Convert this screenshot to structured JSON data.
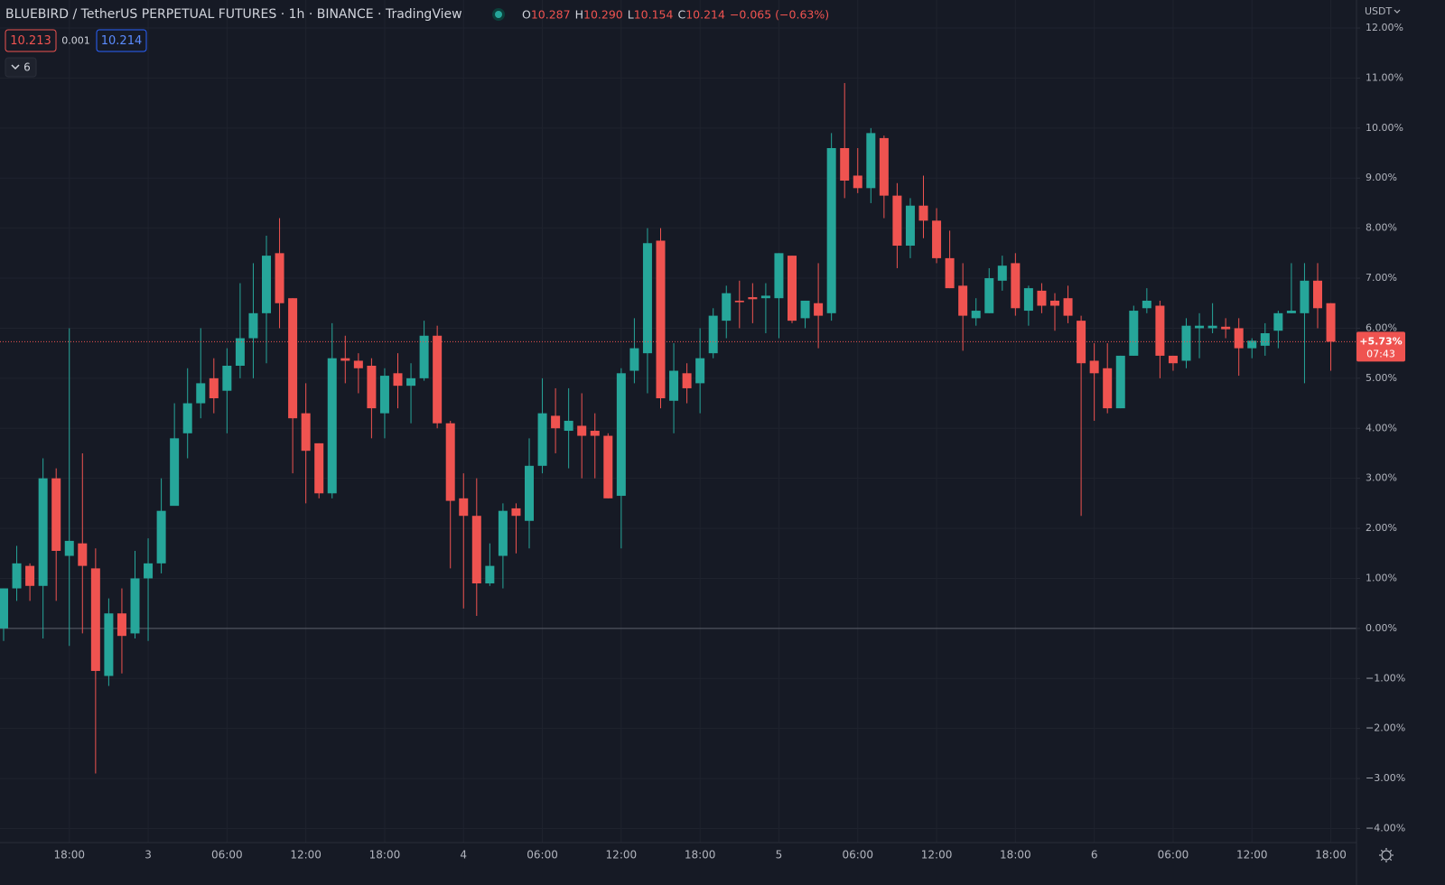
{
  "chart_data": {
    "type": "candlestick",
    "title": "BLUEBIRD / TetherUS PERPETUAL FUTURES · 1h · BINANCE · TradingView",
    "ohlc_legend": {
      "open_label": "O",
      "open": "10.287",
      "high_label": "H",
      "high": "10.290",
      "low_label": "L",
      "low": "10.154",
      "close_label": "C",
      "close": "10.214",
      "change": "−0.065 (−0.63%)"
    },
    "sell_price": "10.213",
    "spread": "0.001",
    "buy_price": "10.214",
    "indicator_count": "6",
    "currency": "USDT",
    "last": {
      "value": 5.73,
      "label": "+5.73%",
      "countdown": "07:43"
    },
    "baseline": 0,
    "up_color": "#26a69a",
    "down_color": "#ef5350",
    "grid": true,
    "categories": [
      null,
      null,
      null,
      null,
      null,
      "18:00",
      null,
      null,
      null,
      null,
      null,
      "3",
      null,
      null,
      null,
      null,
      null,
      "06:00",
      null,
      null,
      null,
      null,
      null,
      "12:00",
      null,
      null,
      null,
      null,
      null,
      "18:00",
      null,
      null,
      null,
      null,
      null,
      "4",
      null,
      null,
      null,
      null,
      null,
      "06:00",
      null,
      null,
      null,
      null,
      null,
      "12:00",
      null,
      null,
      null,
      null,
      null,
      "18:00",
      null,
      null,
      null,
      null,
      null,
      "5",
      null,
      null,
      null,
      null,
      null,
      "06:00",
      null,
      null,
      null,
      null,
      null,
      "12:00",
      null,
      null,
      null,
      null,
      null,
      "18:00",
      null,
      null,
      null,
      null,
      null,
      "6",
      null,
      null,
      null,
      null,
      null,
      "06:00",
      null,
      null,
      null,
      null,
      null,
      "12:00",
      null,
      null,
      null,
      null,
      null,
      "18:00"
    ],
    "open": [
      0,
      0.8,
      1.25,
      0.85,
      3.0,
      1.45,
      1.7,
      1.2,
      -0.95,
      0.3,
      -0.1,
      1.0,
      1.3,
      2.45,
      3.9,
      4.5,
      5.0,
      4.75,
      5.25,
      5.8,
      6.3,
      7.5,
      6.6,
      4.3,
      3.7,
      2.7,
      5.4,
      5.35,
      5.25,
      4.3,
      5.1,
      4.85,
      5.0,
      5.85,
      4.1,
      2.6,
      2.25,
      0.9,
      1.45,
      2.4,
      2.15,
      3.25,
      4.25,
      3.95,
      4.05,
      3.95,
      3.85,
      2.65,
      5.15,
      5.5,
      7.75,
      4.55,
      5.1,
      4.9,
      5.5,
      6.15,
      6.55,
      6.62,
      6.6,
      6.6,
      7.45,
      6.2,
      6.5,
      6.3,
      9.6,
      9.05,
      8.8,
      9.8,
      8.65,
      7.65,
      8.45,
      8.15,
      7.4,
      6.85,
      6.2,
      6.3,
      6.95,
      7.3,
      6.35,
      6.75,
      6.55,
      6.6,
      6.15,
      5.35,
      5.2,
      4.4,
      5.45,
      6.4,
      6.45,
      5.45,
      5.35,
      6.0,
      6.0,
      6.03,
      6.0,
      5.6,
      5.65,
      5.95,
      6.3,
      6.3,
      6.95,
      6.5
    ],
    "high": [
      0.8,
      1.65,
      1.3,
      3.4,
      3.2,
      6.0,
      3.5,
      1.6,
      0.6,
      0.8,
      1.55,
      1.8,
      3.0,
      4.5,
      5.2,
      6.0,
      5.4,
      5.6,
      6.9,
      7.3,
      7.85,
      8.2,
      6.6,
      4.9,
      3.7,
      6.1,
      5.85,
      5.5,
      5.4,
      5.2,
      5.5,
      5.3,
      6.15,
      6.05,
      4.15,
      3.1,
      3.0,
      1.7,
      2.5,
      2.5,
      3.8,
      5.0,
      4.8,
      4.8,
      4.7,
      4.3,
      3.9,
      5.2,
      6.2,
      8.0,
      8.0,
      5.7,
      5.3,
      6.0,
      6.4,
      6.85,
      6.95,
      6.9,
      6.9,
      7.5,
      7.45,
      6.55,
      7.3,
      9.9,
      10.9,
      9.6,
      10.0,
      9.85,
      8.9,
      8.6,
      9.05,
      8.4,
      7.95,
      7.3,
      6.6,
      7.2,
      7.45,
      7.5,
      6.85,
      6.9,
      6.7,
      6.85,
      6.25,
      5.7,
      5.7,
      5.45,
      6.45,
      6.8,
      6.55,
      5.45,
      6.2,
      6.3,
      6.5,
      6.2,
      6.2,
      5.8,
      6.1,
      6.35,
      7.3,
      7.3,
      7.3,
      6.5
    ],
    "low": [
      -0.25,
      0.55,
      0.55,
      -0.2,
      0.55,
      -0.35,
      -0.1,
      -2.9,
      -1.15,
      -0.9,
      -0.2,
      -0.25,
      1.1,
      2.5,
      3.4,
      4.2,
      4.3,
      3.9,
      5.0,
      5.0,
      5.3,
      6.0,
      3.1,
      2.5,
      2.6,
      2.6,
      4.9,
      4.7,
      3.8,
      3.8,
      4.4,
      4.1,
      4.95,
      4.0,
      1.2,
      0.4,
      0.25,
      0.85,
      0.8,
      1.5,
      1.6,
      3.1,
      3.5,
      3.2,
      3.0,
      3.0,
      2.6,
      1.6,
      4.9,
      4.7,
      4.4,
      3.9,
      4.5,
      4.3,
      5.4,
      5.8,
      6.0,
      6.1,
      5.9,
      5.8,
      6.1,
      6.0,
      5.6,
      6.15,
      8.6,
      8.7,
      8.5,
      8.2,
      7.2,
      7.4,
      7.8,
      7.3,
      6.8,
      5.55,
      6.05,
      6.3,
      6.75,
      6.25,
      6.05,
      6.3,
      5.95,
      6.1,
      2.25,
      4.15,
      4.3,
      4.4,
      5.45,
      6.3,
      5.0,
      5.15,
      5.2,
      5.4,
      5.9,
      5.8,
      5.05,
      5.4,
      5.45,
      5.6,
      6.3,
      4.9,
      6.0,
      5.15
    ],
    "close": [
      0.8,
      1.3,
      0.85,
      3.0,
      1.55,
      1.75,
      1.25,
      -0.85,
      0.3,
      -0.15,
      1.0,
      1.3,
      2.35,
      3.8,
      4.5,
      4.9,
      4.6,
      5.25,
      5.8,
      6.3,
      7.45,
      6.5,
      4.2,
      3.55,
      2.7,
      5.4,
      5.35,
      5.2,
      4.4,
      5.05,
      4.85,
      5.0,
      5.85,
      4.1,
      2.55,
      2.25,
      0.9,
      1.25,
      2.35,
      2.25,
      3.25,
      4.3,
      4.0,
      4.15,
      3.85,
      3.85,
      2.6,
      5.1,
      5.6,
      7.7,
      4.6,
      5.15,
      4.8,
      5.4,
      6.25,
      6.7,
      6.52,
      6.58,
      6.65,
      7.5,
      6.15,
      6.55,
      6.25,
      9.6,
      8.95,
      8.8,
      9.9,
      8.65,
      7.65,
      8.45,
      8.15,
      7.4,
      6.8,
      6.25,
      6.35,
      7.0,
      7.25,
      6.4,
      6.8,
      6.45,
      6.45,
      6.25,
      5.3,
      5.1,
      4.4,
      5.45,
      6.35,
      6.55,
      5.45,
      5.3,
      6.05,
      6.05,
      6.05,
      5.98,
      5.6,
      5.75,
      5.9,
      6.3,
      6.35,
      6.95,
      6.4,
      5.73
    ],
    "ylim": [
      -4.28,
      12.56
    ],
    "yticks": [
      {
        "value": -4,
        "label": "−4.00%"
      },
      {
        "value": -3,
        "label": "−3.00%"
      },
      {
        "value": -2,
        "label": "−2.00%"
      },
      {
        "value": -1,
        "label": "−1.00%"
      },
      {
        "value": 0,
        "label": "0.00%"
      },
      {
        "value": 1,
        "label": "1.00%"
      },
      {
        "value": 2,
        "label": "2.00%"
      },
      {
        "value": 3,
        "label": "3.00%"
      },
      {
        "value": 4,
        "label": "4.00%"
      },
      {
        "value": 5,
        "label": "5.00%"
      },
      {
        "value": 6,
        "label": "6.00%"
      },
      {
        "value": 7,
        "label": "7.00%"
      },
      {
        "value": 8,
        "label": "8.00%"
      },
      {
        "value": 9,
        "label": "9.00%"
      },
      {
        "value": 10,
        "label": "10.00%"
      },
      {
        "value": 11,
        "label": "11.00%"
      },
      {
        "value": 12,
        "label": "12.00%"
      }
    ]
  }
}
